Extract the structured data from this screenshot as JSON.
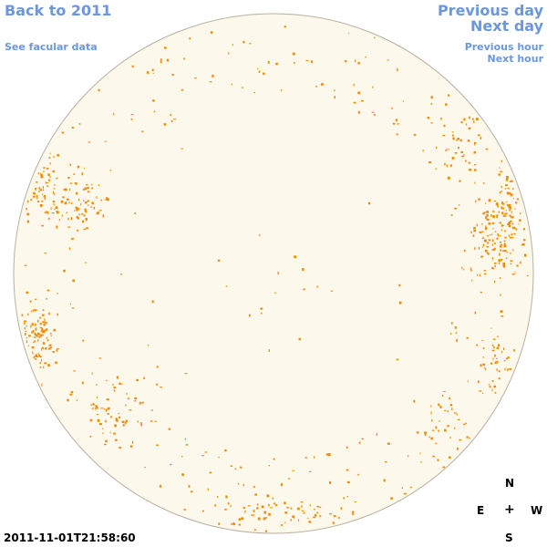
{
  "nav": {
    "back_label": "Back to 2011",
    "facular_label": "See facular data",
    "previous_day_label": "Previous day",
    "next_day_label": "Next day",
    "previous_hour_label": "Previous hour",
    "next_hour_label": "Next hour"
  },
  "compass": {
    "north": "N",
    "south": "S",
    "east": "E",
    "west": "W",
    "center": "+"
  },
  "timestamp": "2011-11-01T21:58:60",
  "colors": {
    "link": "#6b97e0",
    "disk_fill": "#fdf8ec",
    "disk_outline": "#b8b0a0",
    "facula": "#f28a00"
  }
}
